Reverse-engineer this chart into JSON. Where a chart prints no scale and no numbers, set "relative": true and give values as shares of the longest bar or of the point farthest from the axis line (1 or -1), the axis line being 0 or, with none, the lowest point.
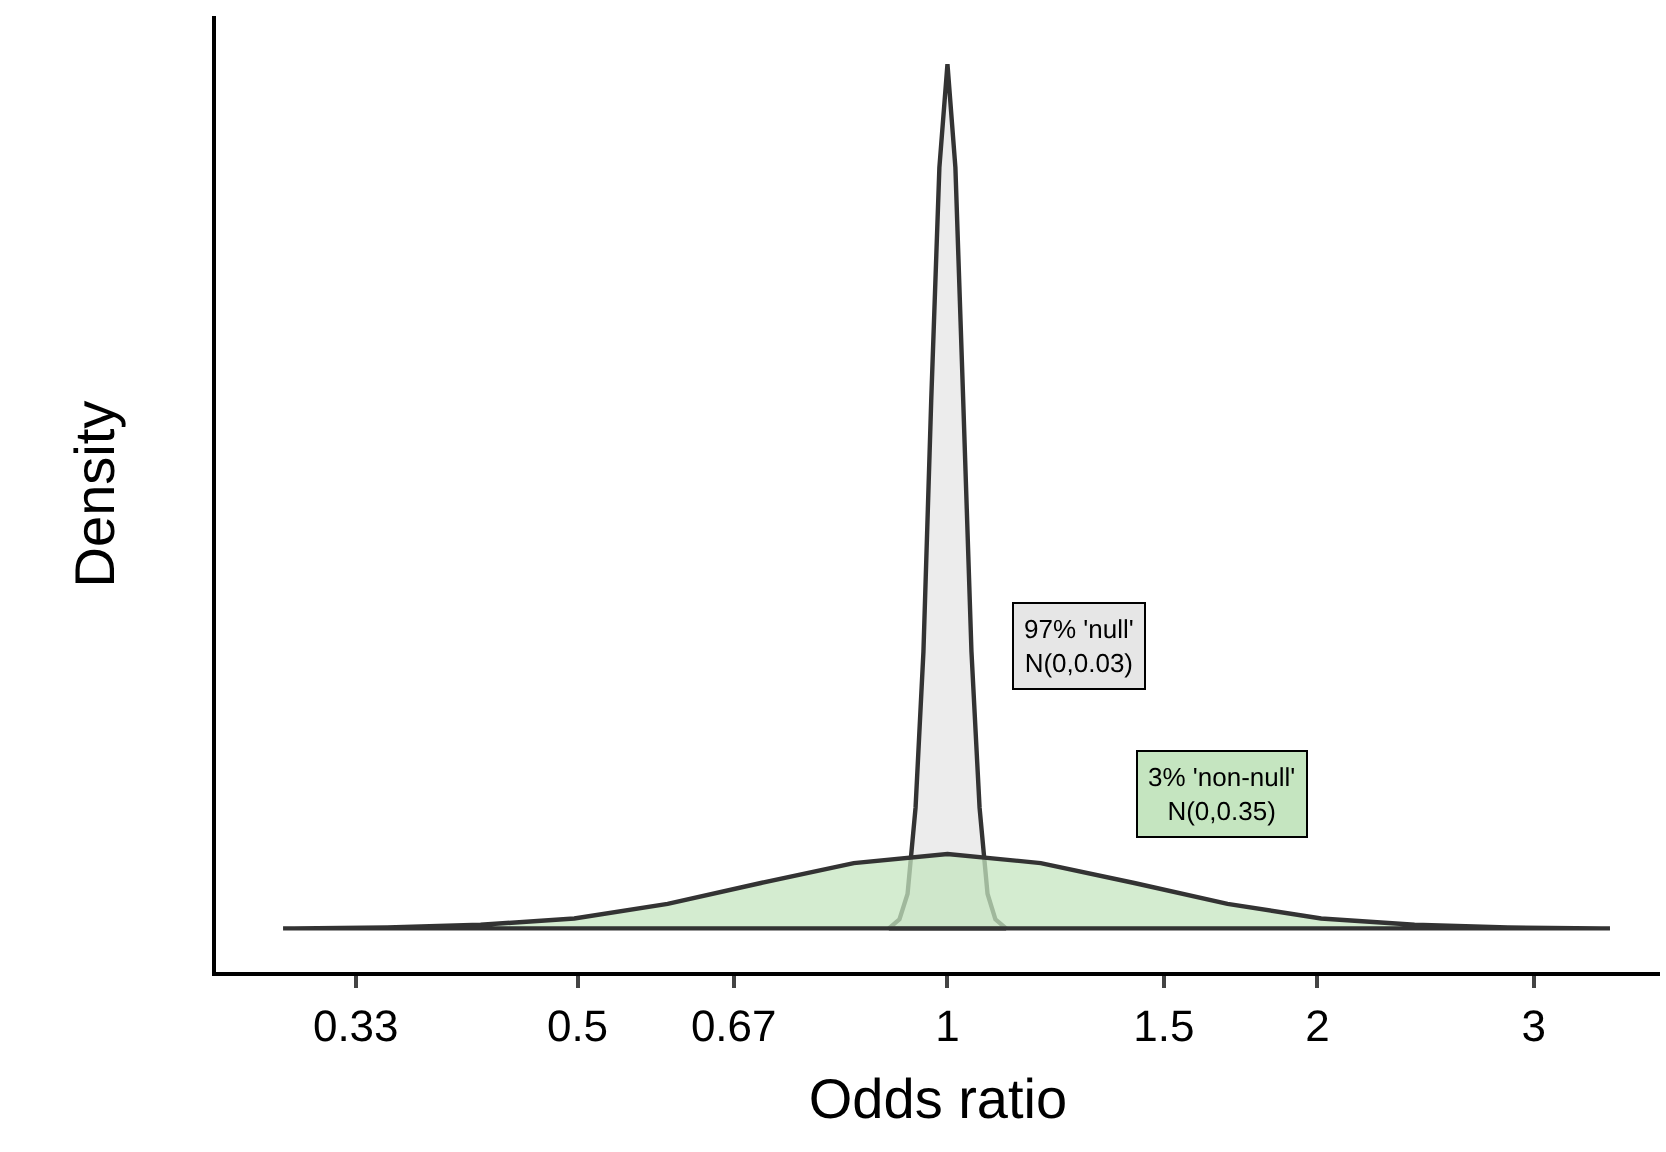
{
  "chart_data": {
    "type": "area",
    "relative": true,
    "xlabel": "Odds ratio",
    "ylabel": "Density",
    "log": "x",
    "xlim": [
      0.254,
      3.8
    ],
    "xticks": [
      0.33,
      0.5,
      0.67,
      1,
      1.5,
      2,
      3
    ],
    "marker": "none",
    "line_style": "solid",
    "series": [
      {
        "color": "#e6e6e6",
        "x": [
          0.896,
          0.914,
          0.928,
          0.942,
          0.956,
          0.97,
          0.985,
          1,
          1.015,
          1.03,
          1.046,
          1.062,
          1.078,
          1.094,
          1.116
        ],
        "values": [
          0.048,
          0.058,
          0.086,
          0.181,
          0.353,
          0.629,
          0.886,
          1,
          0.886,
          0.629,
          0.353,
          0.181,
          0.086,
          0.058,
          0.048
        ]
      },
      {
        "color": "#c5e5c0",
        "x": [
          0.288,
          0.294,
          0.35,
          0.417,
          0.497,
          0.592,
          0.705,
          0.839,
          1,
          1.191,
          1.419,
          1.69,
          2.014,
          2.399,
          2.858,
          3.404,
          3.46
        ],
        "values": [
          0.048,
          0.048,
          0.049,
          0.052,
          0.059,
          0.075,
          0.098,
          0.12,
          0.13,
          0.12,
          0.098,
          0.075,
          0.059,
          0.052,
          0.049,
          0.048,
          0.048
        ]
      }
    ],
    "annotations": [
      "97% 'null'\nN(0,0.03)",
      "3% 'non-null'\nN(0,0.35)"
    ]
  }
}
